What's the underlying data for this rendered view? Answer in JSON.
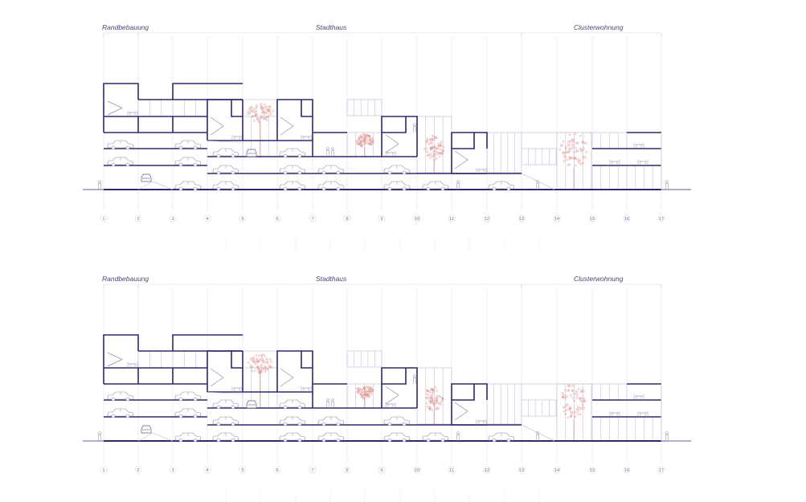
{
  "drawing": {
    "type": "architectural-section",
    "colors": {
      "structure": "#2e2a6e",
      "light_line": "#c9c8dc",
      "grid_line": "#dcdbe6",
      "tree": "#d98a86",
      "label": "#4a4878"
    },
    "sections": [
      {
        "id": "section-a",
        "zones": [
          {
            "label": "Randbebauung",
            "from_axis": 1,
            "to_axis": 2
          },
          {
            "label": "Stadthaus",
            "from_axis": 2,
            "to_axis": 13
          },
          {
            "label": "Clusterwohnung",
            "from_axis": 13,
            "to_axis": 17
          }
        ],
        "axes": [
          "1",
          "2",
          "3",
          "4",
          "5",
          "6",
          "7",
          "8",
          "9",
          "10",
          "11",
          "12",
          "13",
          "14",
          "15",
          "16",
          "17"
        ]
      },
      {
        "id": "section-b",
        "zones": [
          {
            "label": "Randbebauung",
            "from_axis": 1,
            "to_axis": 2
          },
          {
            "label": "Stadthaus",
            "from_axis": 2,
            "to_axis": 13
          },
          {
            "label": "Clusterwohnung",
            "from_axis": 13,
            "to_axis": 17
          }
        ],
        "axes": [
          "1",
          "2",
          "3",
          "4",
          "5",
          "6",
          "7",
          "8",
          "9",
          "10",
          "11",
          "12",
          "13",
          "14",
          "15",
          "16",
          "17"
        ]
      }
    ]
  }
}
